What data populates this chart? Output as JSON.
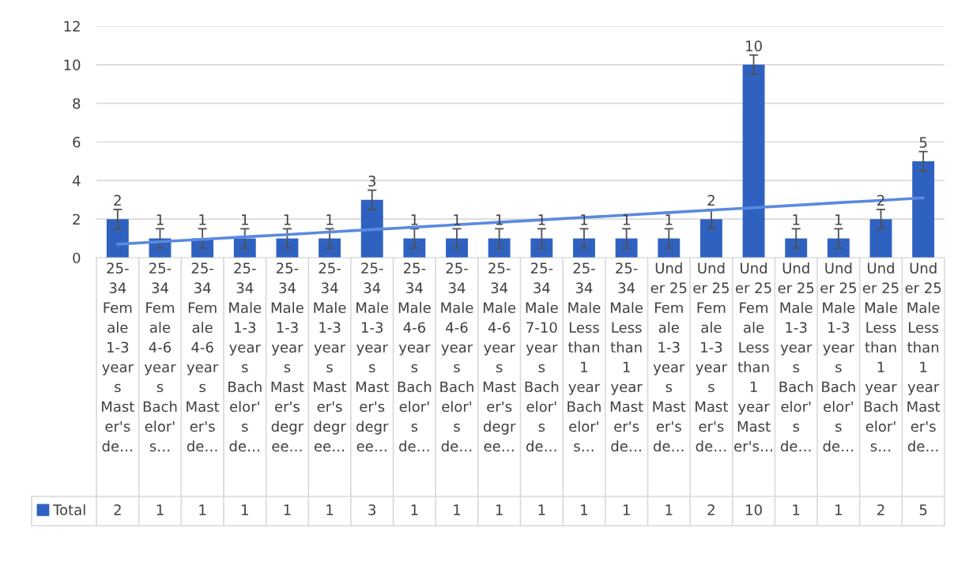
{
  "chart_data": {
    "type": "bar",
    "categories": [
      "25-\n34\nFem\nale\n1-3\nyear\ns\nMast\ner's\nde…",
      "25-\n34\nFem\nale\n4-6\nyear\ns\nBach\nelor'\ns…",
      "25-\n34\nFem\nale\n4-6\nyear\ns\nMast\ner's\nde…",
      "25-\n34\nMale\n1-3\nyear\ns\nBach\nelor'\ns\nde…",
      "25-\n34\nMale\n1-3\nyear\ns\nMast\ner's\ndegr\nee…",
      "25-\n34\nMale\n1-3\nyear\ns\nMast\ner's\ndegr\nee…",
      "25-\n34\nMale\n1-3\nyear\ns\nMast\ner's\ndegr\nee…",
      "25-\n34\nMale\n4-6\nyear\ns\nBach\nelor'\ns\nde…",
      "25-\n34\nMale\n4-6\nyear\ns\nBach\nelor'\ns\nde…",
      "25-\n34\nMale\n4-6\nyear\ns\nMast\ner's\ndegr\nee…",
      "25-\n34\nMale\n7-10\nyear\ns\nBach\nelor'\ns\nde…",
      "25-\n34\nMale\nLess\nthan\n1\nyear\nBach\nelor'\ns…",
      "25-\n34\nMale\nLess\nthan\n1\nyear\nMast\ner's\nde…",
      "Und\ner 25\nFem\nale\n1-3\nyear\ns\nMast\ner's\nde…",
      "Und\ner 25\nFem\nale\n1-3\nyear\ns\nMast\ner's\nde…",
      "Und\ner 25\nFem\nale\nLess\nthan\n1\nyear\nMast\ner's…",
      "Und\ner 25\nMale\n1-3\nyear\ns\nBach\nelor'\ns\nde…",
      "Und\ner 25\nMale\n1-3\nyear\ns\nBach\nelor'\ns\nde…",
      "Und\ner 25\nMale\nLess\nthan\n1\nyear\nBach\nelor'\ns…",
      "Und\ner 25\nMale\nLess\nthan\n1\nyear\nMast\ner's\nde…"
    ],
    "series": [
      {
        "name": "Total",
        "color": "#2f62c0",
        "values": [
          2,
          1,
          1,
          1,
          1,
          1,
          3,
          1,
          1,
          1,
          1,
          1,
          1,
          1,
          2,
          10,
          1,
          1,
          2,
          5
        ],
        "value_labels": [
          "2",
          "1",
          "1",
          "1",
          "1",
          "1",
          "3",
          "1",
          "1",
          "1",
          "1",
          "1",
          "1",
          "1",
          "2",
          "10",
          "1",
          "1",
          "2",
          "5"
        ],
        "errors": [
          0.5,
          0.5,
          0.5,
          0.5,
          0.5,
          0.5,
          0.5,
          0.5,
          0.5,
          0.5,
          0.5,
          0.5,
          0.5,
          0.5,
          0.5,
          0.5,
          0.5,
          0.5,
          0.5,
          0.5
        ]
      },
      {
        "type": "line",
        "color": "#5a8ae0",
        "values": [
          0.7,
          0.83,
          0.95,
          1.08,
          1.2,
          1.33,
          1.46,
          1.58,
          1.71,
          1.84,
          1.96,
          2.09,
          2.21,
          2.34,
          2.47,
          2.59,
          2.72,
          2.85,
          2.97,
          3.1
        ]
      }
    ],
    "ylim": [
      0,
      12
    ],
    "yticks": [
      0,
      2,
      4,
      6,
      8,
      10,
      12
    ],
    "grid": "y",
    "legend": "bottom left",
    "marker": "none",
    "line_style": "solid"
  }
}
